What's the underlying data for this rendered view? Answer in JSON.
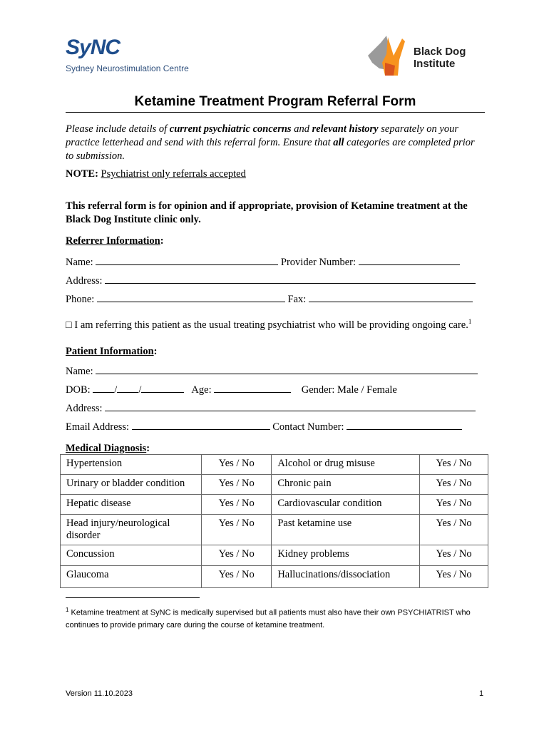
{
  "header": {
    "logo_left": "SyNC",
    "logo_left_sub": "Sydney Neurostimulation Centre",
    "logo_right": "Black Dog Institute",
    "logo_colors": {
      "sync_blue": "#1f4e8c",
      "bdi_orange": "#f7931e"
    }
  },
  "title": "Ketamine Treatment Program Referral Form",
  "intro": {
    "p1": "Please include details of ",
    "b1": "current psychiatric concerns",
    "p2": " and ",
    "b2": "relevant history",
    "p3": " separately on your practice letterhead and send with this referral form. Ensure that ",
    "b3": "all",
    "p4": " categories are completed prior to submission."
  },
  "note": {
    "label": "NOTE:",
    "text": "Psychiatrist only referrals accepted"
  },
  "disclaimer": "This referral form is for opinion and if appropriate, provision of Ketamine treatment at the Black Dog Institute clinic only.",
  "referrer": {
    "heading": "Referrer Information",
    "colon": ":",
    "name": "Name:",
    "provider": "Provider Number:",
    "address": "Address:",
    "phone": "Phone:",
    "fax": "Fax:"
  },
  "checkbox": {
    "box": "□",
    "text": "I am referring this patient as the usual treating psychiatrist who will be providing ongoing care.",
    "sup": "1"
  },
  "patient": {
    "heading": "Patient Information",
    "colon": ":",
    "name": "Name:",
    "dob": "DOB:",
    "dob_sep": "/",
    "age": "Age:",
    "gender": "Gender: Male / Female",
    "address": "Address:",
    "email": "Email Address:",
    "contact": "Contact Number:"
  },
  "medical": {
    "heading": "Medical Diagnosis",
    "colon": ":",
    "rows": [
      [
        "Hypertension",
        "Yes / No",
        "Alcohol or drug misuse",
        "Yes / No"
      ],
      [
        "Urinary or bladder condition",
        "Yes / No",
        "Chronic pain",
        "Yes / No"
      ],
      [
        "Hepatic disease",
        "Yes / No",
        "Cardiovascular condition",
        "Yes / No"
      ],
      [
        "Head injury/neurological disorder",
        "Yes / No",
        "Past ketamine use",
        "Yes / No"
      ],
      [
        "Concussion",
        "Yes / No",
        "Kidney problems",
        "Yes / No"
      ],
      [
        "Glaucoma",
        "Yes / No",
        "Hallucinations/dissociation",
        "Yes / No"
      ]
    ]
  },
  "footnote": {
    "sup": "1",
    "text": "Ketamine treatment at SyNC is medically supervised but all patients must also have their own PSYCHIATRIST who continues to provide primary care during the course of ketamine treatment."
  },
  "footer": {
    "version": "Version 11.10.2023",
    "page": "1"
  }
}
